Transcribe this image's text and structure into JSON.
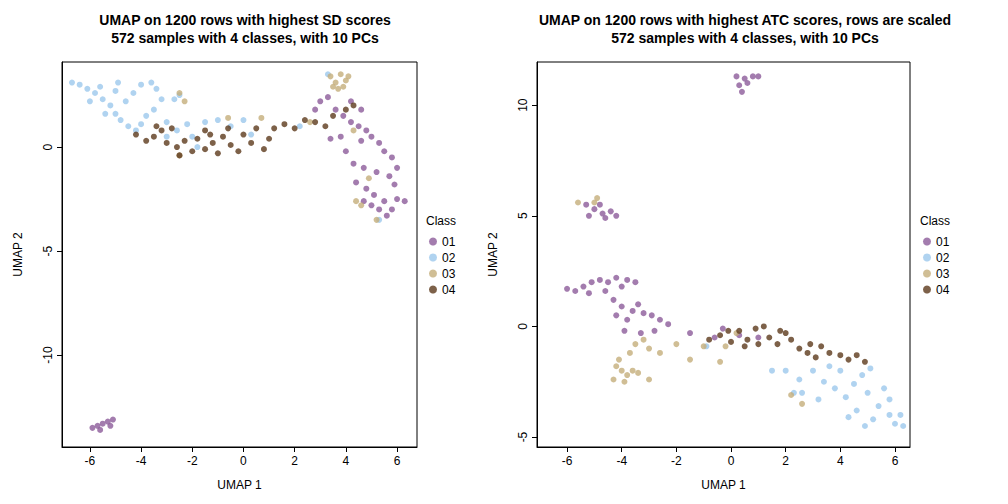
{
  "chart_data": [
    {
      "type": "scatter",
      "title": "UMAP on 1200 rows with highest SD scores\n572 samples with 4 classes, with 10 PCs",
      "xlabel": "UMAP 1",
      "ylabel": "UMAP 2",
      "xlim": [
        -7.09,
        6.78
      ],
      "ylim": [
        -14.42,
        4.09
      ],
      "xticks": [
        -6,
        -4,
        -2,
        0,
        2,
        4,
        6
      ],
      "yticks": [
        -10,
        -5,
        0
      ],
      "grid": false,
      "legend": "right",
      "legend_title": "Class",
      "series": [
        {
          "name": "01",
          "color": "#8C5B9A",
          "values": [
            [
              3.3,
              2.4
            ],
            [
              3.6,
              1.8
            ],
            [
              3.9,
              1.5
            ],
            [
              4.2,
              1.2
            ],
            [
              4.5,
              1.0
            ],
            [
              4.8,
              0.8
            ],
            [
              5.0,
              0.5
            ],
            [
              5.3,
              0.2
            ],
            [
              5.5,
              -0.2
            ],
            [
              5.8,
              -0.5
            ],
            [
              6.0,
              -1.0
            ],
            [
              5.7,
              -1.4
            ],
            [
              5.2,
              -1.2
            ],
            [
              4.7,
              -1.0
            ],
            [
              4.3,
              -0.8
            ],
            [
              4.0,
              -0.2
            ],
            [
              3.8,
              0.5
            ],
            [
              4.4,
              -1.7
            ],
            [
              4.8,
              -2.0
            ],
            [
              5.1,
              -2.3
            ],
            [
              5.5,
              -2.6
            ],
            [
              6.0,
              -2.5
            ],
            [
              6.3,
              -2.6
            ],
            [
              5.8,
              -3.0
            ],
            [
              5.3,
              -3.0
            ],
            [
              5.0,
              -2.8
            ],
            [
              4.7,
              -2.6
            ],
            [
              5.6,
              -3.3
            ],
            [
              4.2,
              2.2
            ],
            [
              4.6,
              1.8
            ],
            [
              3.0,
              2.2
            ],
            [
              2.8,
              1.8
            ],
            [
              3.4,
              0.4
            ],
            [
              4.6,
              0.3
            ],
            [
              5.9,
              -1.8
            ],
            [
              -5.9,
              -13.5
            ],
            [
              -5.7,
              -13.4
            ],
            [
              -5.5,
              -13.3
            ],
            [
              -5.3,
              -13.2
            ],
            [
              -5.1,
              -13.1
            ],
            [
              -5.6,
              -13.6
            ],
            [
              -5.2,
              -13.4
            ]
          ]
        },
        {
          "name": "02",
          "color": "#9CC8EC",
          "values": [
            [
              -6.7,
              3.1
            ],
            [
              -6.4,
              3.0
            ],
            [
              -6.1,
              2.8
            ],
            [
              -5.8,
              2.6
            ],
            [
              -5.5,
              2.3
            ],
            [
              -5.2,
              2.0
            ],
            [
              -5.0,
              1.6
            ],
            [
              -4.8,
              1.3
            ],
            [
              -4.5,
              1.0
            ],
            [
              -4.2,
              0.8
            ],
            [
              -4.0,
              1.1
            ],
            [
              -3.8,
              1.5
            ],
            [
              -4.6,
              2.2
            ],
            [
              -4.3,
              2.6
            ],
            [
              -4.0,
              3.0
            ],
            [
              -3.6,
              3.1
            ],
            [
              -3.4,
              2.8
            ],
            [
              -3.2,
              2.3
            ],
            [
              -5.6,
              2.9
            ],
            [
              -5.0,
              2.7
            ],
            [
              -4.9,
              3.1
            ],
            [
              -6.0,
              2.2
            ],
            [
              -5.4,
              1.6
            ],
            [
              -3.5,
              1.8
            ],
            [
              -3.0,
              1.2
            ],
            [
              -2.5,
              2.5
            ],
            [
              -2.7,
              2.3
            ],
            [
              -2.2,
              1.1
            ],
            [
              -1.5,
              1.2
            ],
            [
              -1.0,
              1.3
            ],
            [
              -0.5,
              1.0
            ],
            [
              0.0,
              1.3
            ],
            [
              -2.6,
              0.8
            ],
            [
              -2.0,
              0.5
            ],
            [
              0.3,
              0.6
            ],
            [
              2.2,
              1.0
            ],
            [
              3.3,
              3.5
            ],
            [
              5.3,
              -3.5
            ],
            [
              -3.0,
              0.5
            ],
            [
              -1.8,
              0.0
            ]
          ]
        },
        {
          "name": "03",
          "color": "#C4AE7A",
          "values": [
            [
              3.4,
              3.4
            ],
            [
              3.6,
              3.1
            ],
            [
              3.8,
              3.5
            ],
            [
              4.0,
              3.2
            ],
            [
              3.7,
              2.8
            ],
            [
              3.5,
              2.9
            ],
            [
              4.1,
              3.4
            ],
            [
              3.9,
              2.9
            ],
            [
              -2.5,
              2.6
            ],
            [
              -2.3,
              2.2
            ],
            [
              -2.5,
              -0.4
            ],
            [
              -0.6,
              1.4
            ],
            [
              2.6,
              1.2
            ],
            [
              0.7,
              1.4
            ],
            [
              4.6,
              -2.8
            ],
            [
              4.4,
              -2.6
            ],
            [
              5.2,
              -3.5
            ],
            [
              4.9,
              -1.5
            ],
            [
              4.3,
              0.8
            ]
          ]
        },
        {
          "name": "04",
          "color": "#5C3A1C",
          "values": [
            [
              -4.2,
              0.6
            ],
            [
              -3.8,
              0.3
            ],
            [
              -3.5,
              0.5
            ],
            [
              -3.2,
              0.8
            ],
            [
              -3.0,
              0.2
            ],
            [
              -2.6,
              0.0
            ],
            [
              -2.3,
              0.3
            ],
            [
              -2.0,
              -0.2
            ],
            [
              -1.8,
              0.4
            ],
            [
              -1.5,
              -0.1
            ],
            [
              -1.2,
              0.2
            ],
            [
              -1.0,
              -0.3
            ],
            [
              -0.8,
              0.5
            ],
            [
              -0.5,
              0.1
            ],
            [
              -0.2,
              -0.2
            ],
            [
              0.0,
              0.6
            ],
            [
              0.3,
              0.2
            ],
            [
              0.5,
              0.9
            ],
            [
              0.8,
              -0.1
            ],
            [
              -1.5,
              0.8
            ],
            [
              -2.5,
              -0.4
            ],
            [
              -0.6,
              0.9
            ],
            [
              -1.3,
              0.6
            ],
            [
              1.2,
              0.9
            ],
            [
              1.6,
              1.1
            ],
            [
              2.0,
              0.9
            ],
            [
              2.4,
              1.3
            ],
            [
              2.8,
              1.2
            ],
            [
              3.2,
              1.0
            ],
            [
              3.5,
              1.5
            ],
            [
              4.0,
              1.8
            ],
            [
              4.3,
              2.0
            ],
            [
              1.0,
              0.4
            ],
            [
              -3.4,
              1.0
            ],
            [
              -2.8,
              0.9
            ]
          ]
        }
      ]
    },
    {
      "type": "scatter",
      "title": "UMAP on 1200 rows with highest ATC scores, rows are scaled\n572 samples with 4 classes, with 10 PCs",
      "xlabel": "UMAP 1",
      "ylabel": "UMAP 2",
      "xlim": [
        -7.1,
        6.55
      ],
      "ylim": [
        -5.45,
        11.95
      ],
      "xticks": [
        -6,
        -4,
        -2,
        0,
        2,
        4,
        6
      ],
      "yticks": [
        -5,
        0,
        5,
        10
      ],
      "grid": false,
      "legend": "right",
      "legend_title": "Class",
      "series": [
        {
          "name": "01",
          "color": "#8C5B9A",
          "values": [
            [
              0.2,
              11.3
            ],
            [
              0.5,
              11.2
            ],
            [
              0.8,
              11.3
            ],
            [
              0.3,
              10.9
            ],
            [
              0.6,
              11.0
            ],
            [
              0.4,
              10.6
            ],
            [
              1.0,
              11.3
            ],
            [
              -5.3,
              5.5
            ],
            [
              -5.0,
              5.3
            ],
            [
              -4.7,
              5.1
            ],
            [
              -4.4,
              5.2
            ],
            [
              -5.2,
              5.0
            ],
            [
              -4.8,
              5.5
            ],
            [
              -4.2,
              5.0
            ],
            [
              -4.6,
              4.9
            ],
            [
              -6.0,
              1.7
            ],
            [
              -5.7,
              1.6
            ],
            [
              -5.4,
              1.8
            ],
            [
              -5.1,
              2.0
            ],
            [
              -4.8,
              2.1
            ],
            [
              -4.5,
              2.0
            ],
            [
              -4.2,
              2.2
            ],
            [
              -3.8,
              2.1
            ],
            [
              -3.5,
              2.0
            ],
            [
              -4.0,
              1.8
            ],
            [
              -5.2,
              1.5
            ],
            [
              -4.6,
              1.6
            ],
            [
              -4.3,
              1.2
            ],
            [
              -4.0,
              0.9
            ],
            [
              -3.6,
              0.7
            ],
            [
              -3.2,
              0.6
            ],
            [
              -2.9,
              0.5
            ],
            [
              -3.8,
              0.3
            ],
            [
              -4.2,
              0.5
            ],
            [
              -3.4,
              1.0
            ],
            [
              -2.6,
              0.3
            ],
            [
              -2.3,
              0.1
            ],
            [
              -2.8,
              -0.2
            ],
            [
              -1.5,
              -0.3
            ],
            [
              -0.6,
              -0.5
            ],
            [
              -0.3,
              -0.1
            ],
            [
              0.3,
              -0.4
            ],
            [
              1.0,
              -0.5
            ],
            [
              -3.9,
              -0.2
            ],
            [
              -3.3,
              -0.3
            ]
          ]
        },
        {
          "name": "02",
          "color": "#9CC8EC",
          "values": [
            [
              2.0,
              -2.0
            ],
            [
              2.5,
              -2.4
            ],
            [
              2.6,
              -3.0
            ],
            [
              3.0,
              -2.0
            ],
            [
              3.4,
              -2.5
            ],
            [
              3.8,
              -2.8
            ],
            [
              3.6,
              -1.8
            ],
            [
              4.0,
              -2.0
            ],
            [
              4.2,
              -3.2
            ],
            [
              4.5,
              -2.6
            ],
            [
              4.6,
              -3.8
            ],
            [
              4.8,
              -2.2
            ],
            [
              5.0,
              -3.0
            ],
            [
              5.2,
              -4.2
            ],
            [
              5.4,
              -3.6
            ],
            [
              5.6,
              -2.8
            ],
            [
              5.8,
              -4.0
            ],
            [
              6.0,
              -4.4
            ],
            [
              6.2,
              -4.0
            ],
            [
              6.3,
              -4.5
            ],
            [
              5.1,
              -1.9
            ],
            [
              4.3,
              -4.1
            ],
            [
              4.9,
              -4.5
            ],
            [
              5.8,
              -3.3
            ],
            [
              3.2,
              -3.3
            ],
            [
              2.3,
              -3.0
            ],
            [
              -0.9,
              -0.9
            ],
            [
              1.5,
              -2.0
            ]
          ]
        },
        {
          "name": "03",
          "color": "#C4AE7A",
          "values": [
            [
              -5.6,
              5.6
            ],
            [
              -5.0,
              5.6
            ],
            [
              -4.9,
              5.8
            ],
            [
              -4.2,
              -1.8
            ],
            [
              -4.0,
              -2.0
            ],
            [
              -3.8,
              -2.2
            ],
            [
              -4.3,
              -2.4
            ],
            [
              -3.9,
              -2.5
            ],
            [
              -3.6,
              -2.0
            ],
            [
              -4.1,
              -1.5
            ],
            [
              -3.7,
              -1.2
            ],
            [
              -3.5,
              -0.8
            ],
            [
              -3.0,
              -1.0
            ],
            [
              -3.2,
              -0.6
            ],
            [
              -2.6,
              -1.2
            ],
            [
              -2.0,
              -0.8
            ],
            [
              -1.5,
              -1.5
            ],
            [
              -1.0,
              -0.9
            ],
            [
              -0.4,
              -1.6
            ],
            [
              -0.2,
              -0.9
            ],
            [
              0.2,
              -0.3
            ],
            [
              2.2,
              -3.1
            ],
            [
              2.6,
              -3.5
            ],
            [
              -3.4,
              -2.1
            ],
            [
              -3.0,
              -2.4
            ]
          ]
        },
        {
          "name": "04",
          "color": "#5C3A1C",
          "values": [
            [
              -0.8,
              -0.6
            ],
            [
              -0.4,
              -0.4
            ],
            [
              0.0,
              -0.7
            ],
            [
              0.3,
              -0.2
            ],
            [
              0.6,
              -0.6
            ],
            [
              0.9,
              -0.1
            ],
            [
              1.2,
              0.0
            ],
            [
              1.4,
              -0.5
            ],
            [
              1.7,
              -0.8
            ],
            [
              2.0,
              -0.3
            ],
            [
              2.2,
              -0.6
            ],
            [
              2.5,
              -1.0
            ],
            [
              2.8,
              -1.2
            ],
            [
              3.1,
              -1.4
            ],
            [
              3.3,
              -0.9
            ],
            [
              3.6,
              -1.2
            ],
            [
              4.0,
              -1.3
            ],
            [
              4.3,
              -1.5
            ],
            [
              4.6,
              -1.3
            ],
            [
              4.9,
              -1.6
            ],
            [
              1.0,
              -0.8
            ],
            [
              1.8,
              -0.2
            ],
            [
              -0.1,
              -0.2
            ],
            [
              2.9,
              -0.8
            ],
            [
              0.5,
              -0.9
            ]
          ]
        }
      ]
    }
  ]
}
